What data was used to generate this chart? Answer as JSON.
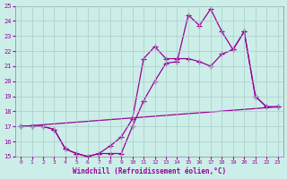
{
  "xlabel": "Windchill (Refroidissement éolien,°C)",
  "xlim": [
    -0.5,
    23.5
  ],
  "ylim": [
    15,
    25
  ],
  "yticks": [
    15,
    16,
    17,
    18,
    19,
    20,
    21,
    22,
    23,
    24,
    25
  ],
  "xticks": [
    0,
    1,
    2,
    3,
    4,
    5,
    6,
    7,
    8,
    9,
    10,
    11,
    12,
    13,
    14,
    15,
    16,
    17,
    18,
    19,
    20,
    21,
    22,
    23
  ],
  "line_color": "#990099",
  "bg_color": "#cceee8",
  "grid_color": "#aacccc",
  "line1_x": [
    0,
    1,
    2,
    3,
    4,
    5,
    6,
    7,
    8,
    9,
    10,
    11,
    12,
    13,
    14,
    15,
    16,
    17,
    18,
    19,
    20,
    21,
    22,
    23
  ],
  "line1_y": [
    17.0,
    17.0,
    17.0,
    16.8,
    15.5,
    15.2,
    15.0,
    15.2,
    15.2,
    15.2,
    17.0,
    18.7,
    20.0,
    21.2,
    21.3,
    24.4,
    23.7,
    24.8,
    23.3,
    22.1,
    23.3,
    19.0,
    18.3,
    18.3
  ],
  "line2_x": [
    0,
    1,
    2,
    3,
    4,
    5,
    6,
    7,
    8,
    9,
    10,
    11,
    12,
    13,
    14,
    15,
    16,
    17,
    18,
    19,
    20,
    21,
    22,
    23
  ],
  "line2_y": [
    17.0,
    17.0,
    17.0,
    16.8,
    15.5,
    15.2,
    15.0,
    15.2,
    15.7,
    16.3,
    17.5,
    21.5,
    22.3,
    21.5,
    21.5,
    21.5,
    21.3,
    21.0,
    21.8,
    22.1,
    23.3,
    19.0,
    18.3,
    18.3
  ],
  "line3_x": [
    0,
    23
  ],
  "line3_y": [
    17.0,
    18.3
  ],
  "marker": "+"
}
